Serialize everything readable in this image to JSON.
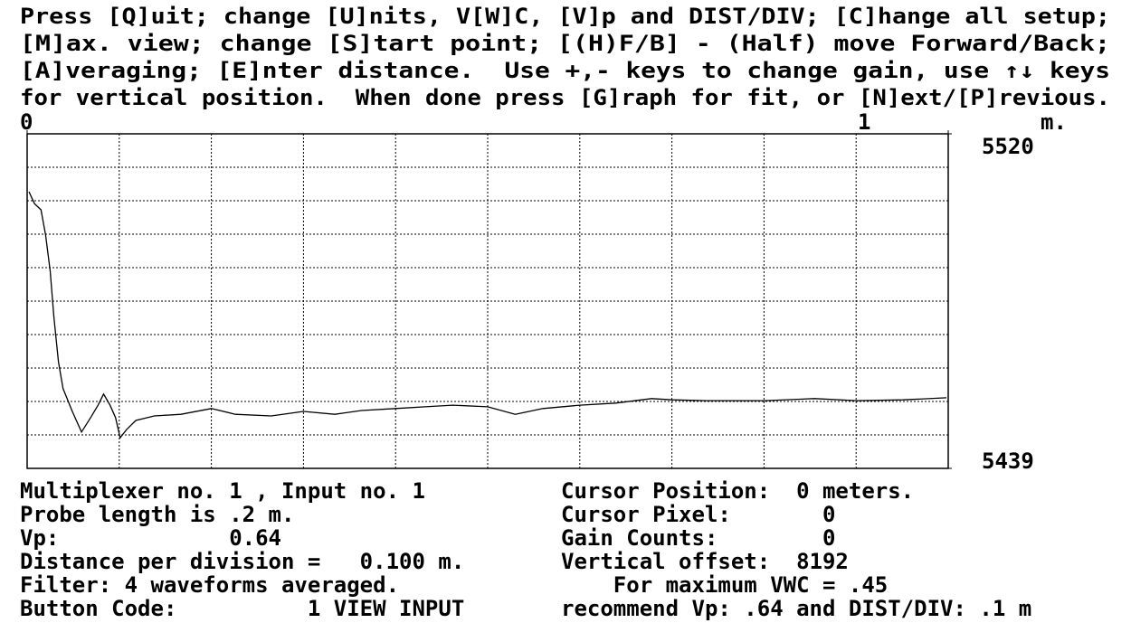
{
  "instructions": [
    "Press [Q]uit; change [U]nits, V[W]C, [V]p and DIST/DIV; [C]hange all setup;",
    "[M]ax. view; change [S]tart point; [(H)F/B] - (Half) move Forward/Back;",
    "[A]veraging; [E]nter distance.  Use +,- keys to change gain, use ↑↓ keys",
    "for vertical position.  When done press [G]raph for fit, or [N]ext/[P]revious."
  ],
  "chart_data": {
    "type": "line",
    "x_label": "m.",
    "color": "#000000",
    "x": [
      0.002,
      0.008,
      0.015,
      0.02,
      0.025,
      0.029,
      0.034,
      0.039,
      0.049,
      0.059,
      0.069,
      0.077,
      0.083,
      0.09,
      0.096,
      0.101,
      0.108,
      0.118,
      0.138,
      0.167,
      0.2,
      0.226,
      0.265,
      0.3,
      0.334,
      0.363,
      0.4,
      0.432,
      0.462,
      0.5,
      0.53,
      0.56,
      0.6,
      0.639,
      0.678,
      0.7,
      0.737,
      0.801,
      0.855,
      0.901,
      0.951,
      0.998
    ],
    "values": [
      5506.0,
      5503.1,
      5501.6,
      5495.5,
      5486.7,
      5475.8,
      5464.8,
      5458.3,
      5452.8,
      5447.8,
      5451.3,
      5454.3,
      5457.0,
      5454.3,
      5451.3,
      5446.4,
      5448.4,
      5450.6,
      5451.7,
      5452.1,
      5453.5,
      5452.1,
      5451.7,
      5452.8,
      5452.1,
      5453.0,
      5453.5,
      5453.9,
      5454.3,
      5453.9,
      5452.1,
      5453.5,
      5454.3,
      5454.8,
      5455.9,
      5455.6,
      5455.4,
      5455.4,
      5455.9,
      5455.4,
      5455.6,
      5456.1
    ],
    "xlim": [
      0,
      1
    ],
    "xticks": [
      0,
      1
    ],
    "ylim": [
      5439,
      5520
    ],
    "yticks": [
      5520,
      5439
    ],
    "grid": true
  },
  "status_left": [
    "Multiplexer no. 1 , Input no. 1",
    "Probe length is .2 m.",
    "Vp:             0.64",
    "Distance per division =   0.100 m.",
    "Filter: 4 waveforms averaged.",
    "Button Code:          1 VIEW INPUT"
  ],
  "status_right": [
    "Cursor Position:  0 meters.",
    "Cursor Pixel:       0",
    "Gain Counts:        0",
    "Vertical offset:  8192",
    "    For maximum VWC = .45",
    "recommend Vp: .64 and DIST/DIV: .1 m"
  ]
}
